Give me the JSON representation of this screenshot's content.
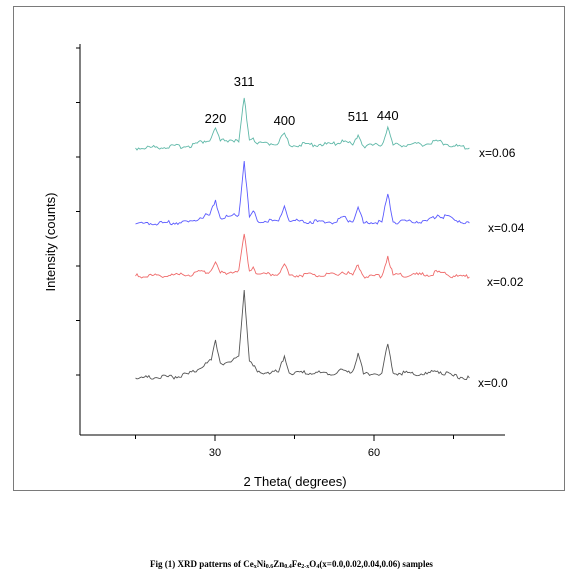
{
  "chart_data": {
    "type": "line",
    "xlabel": "2 Theta( degrees)",
    "ylabel": "Intensity (counts)",
    "xlim": [
      10,
      80
    ],
    "x_ticks": [
      30,
      60
    ],
    "y_ticks_labeled": false,
    "grid": false,
    "peaks": [
      {
        "label": "220",
        "x": 30.1
      },
      {
        "label": "311",
        "x": 35.5
      },
      {
        "label": "400",
        "x": 43.1
      },
      {
        "label": "511",
        "x": 57.0
      },
      {
        "label": "440",
        "x": 62.6
      }
    ],
    "series": [
      {
        "name": "x=0.06",
        "color": "#5fb8a8",
        "x": [
          15,
          25,
          28,
          29,
          30.1,
          31,
          33,
          34.5,
          35.5,
          36.5,
          37.2,
          38,
          42,
          43.1,
          44,
          53,
          54,
          56,
          57,
          58,
          61.5,
          62.6,
          63.6,
          70,
          72,
          75,
          78
        ],
        "y": [
          148,
          146,
          141,
          141,
          128,
          141,
          140,
          142,
          98,
          140,
          138,
          144,
          143,
          133,
          145,
          144,
          140,
          145,
          135,
          146,
          145,
          127,
          145,
          144,
          141,
          146,
          148
        ]
      },
      {
        "name": "x=0.04",
        "color": "#5b5bff",
        "x": [
          15,
          25,
          28,
          29,
          30.1,
          31,
          33,
          34.5,
          35.5,
          36.5,
          37.2,
          38,
          42,
          43.1,
          44,
          53,
          54,
          56,
          57,
          58,
          61.5,
          62.6,
          63.6,
          70,
          72,
          75,
          78
        ],
        "y": [
          224,
          222,
          216,
          215,
          200,
          218,
          216,
          215,
          161,
          217,
          211,
          221,
          221,
          206,
          221,
          222,
          217,
          222,
          207,
          223,
          222,
          194,
          222,
          221,
          215,
          219,
          223
        ]
      },
      {
        "name": "x=0.02",
        "color": "#ef6b6b",
        "x": [
          15,
          25,
          28,
          29,
          30.1,
          31,
          33,
          34.5,
          35.5,
          36.5,
          37.2,
          38,
          42,
          43.1,
          44,
          53,
          54,
          56,
          57,
          58,
          61.5,
          62.6,
          63.6,
          70,
          72,
          75,
          78
        ],
        "y": [
          276,
          275,
          271,
          272,
          262,
          273,
          272,
          270,
          234,
          271,
          267,
          274,
          274,
          264,
          275,
          275,
          272,
          275,
          265,
          276,
          276,
          256,
          275,
          275,
          272,
          276,
          277
        ]
      },
      {
        "name": "x=0.0",
        "color": "#555555",
        "x": [
          15,
          22,
          25,
          27,
          28.5,
          29.3,
          30.1,
          31,
          33,
          34.5,
          35.5,
          36.5,
          37.2,
          38,
          42,
          43.1,
          44,
          53,
          53.7,
          55,
          56,
          57,
          58,
          61.5,
          62.6,
          63.6,
          70,
          72,
          75,
          78
        ],
        "y": [
          378,
          377,
          374,
          369,
          363,
          360,
          340,
          363,
          362,
          356,
          290,
          361,
          366,
          372,
          372,
          356,
          373,
          373,
          369,
          372,
          371,
          353,
          374,
          373,
          344,
          373,
          374,
          371,
          376,
          378
        ]
      }
    ]
  }
}
